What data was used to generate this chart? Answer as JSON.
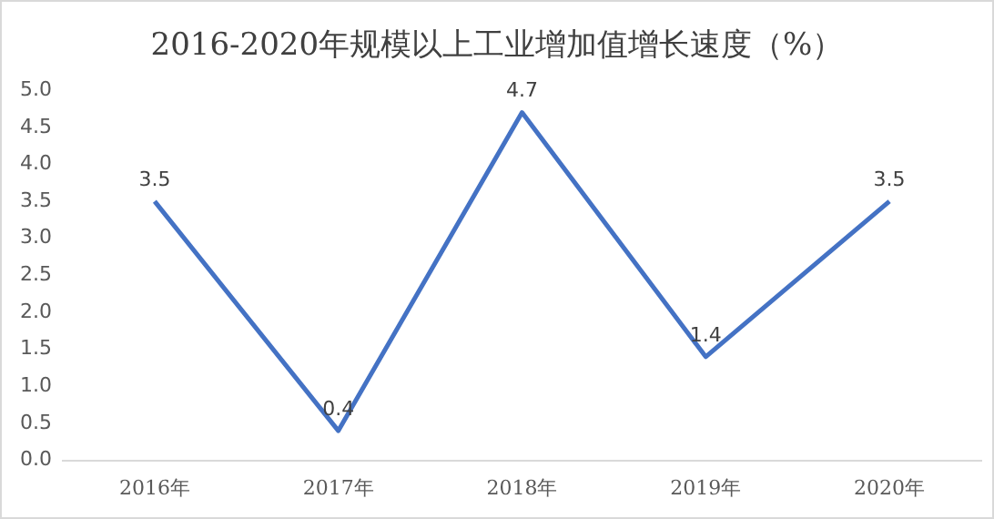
{
  "chart_data": {
    "type": "line",
    "title": "2016-2020年规模以上工业增加值增长速度（%）",
    "categories": [
      "2016年",
      "2017年",
      "2018年",
      "2019年",
      "2020年"
    ],
    "series": [
      {
        "color": "#4472c4",
        "values": [
          3.5,
          0.4,
          4.7,
          1.4,
          3.5
        ]
      }
    ],
    "ylim": [
      0,
      5
    ],
    "yticks": [
      {
        "value": 0,
        "label": "0.0"
      },
      {
        "value": 0.5,
        "label": "0.5"
      },
      {
        "value": 1,
        "label": "1.0"
      },
      {
        "value": 1.5,
        "label": "1.5"
      },
      {
        "value": 2,
        "label": "2.0"
      },
      {
        "value": 2.5,
        "label": "2.5"
      },
      {
        "value": 3,
        "label": "3.0"
      },
      {
        "value": 3.5,
        "label": "3.5"
      },
      {
        "value": 4,
        "label": "4.0"
      },
      {
        "value": 4.5,
        "label": "4.5"
      },
      {
        "value": 5,
        "label": "5.0"
      }
    ],
    "grid": false,
    "legend": false,
    "marker": "none",
    "line_style": "solid",
    "data_labels": true
  }
}
